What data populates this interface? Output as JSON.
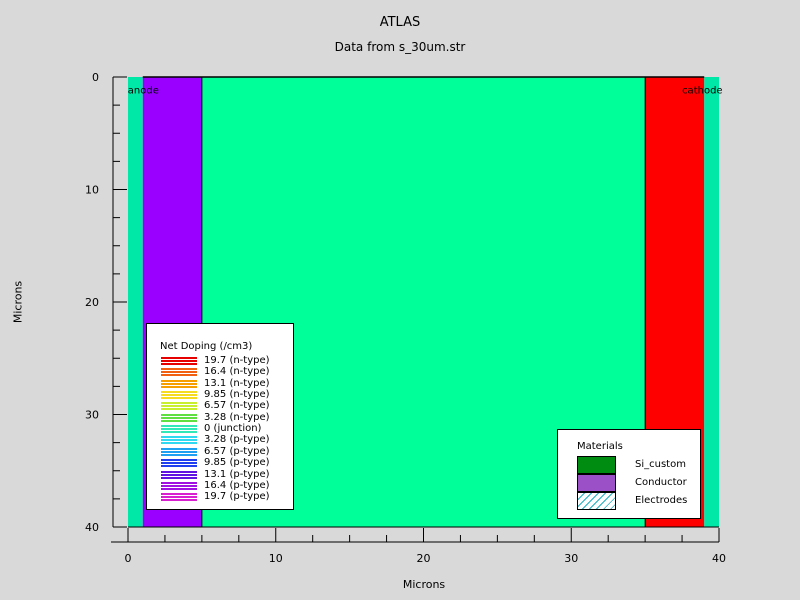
{
  "header": {
    "title": "ATLAS",
    "subtitle": "Data from s_30um.str"
  },
  "chart_data": {
    "type": "heatmap",
    "title": "ATLAS",
    "subtitle": "Data from s_30um.str",
    "xlabel": "Microns",
    "ylabel": "Microns",
    "xlim": [
      0,
      40
    ],
    "ylim": [
      0,
      40
    ],
    "y_inverted": true,
    "x_ticks": [
      "0",
      "10",
      "20",
      "30",
      "40"
    ],
    "y_ticks": [
      "0",
      "10",
      "20",
      "30",
      "40"
    ],
    "regions": [
      {
        "name": "left-electrode-strip",
        "x": [
          0,
          1
        ],
        "y": [
          0,
          40
        ],
        "color": "#00e8a8"
      },
      {
        "name": "anode-region",
        "x": [
          1,
          5
        ],
        "y": [
          0,
          40
        ],
        "color": "#9900ff"
      },
      {
        "name": "junction-region",
        "x": [
          5,
          35
        ],
        "y": [
          0,
          40
        ],
        "color": "#00ff99"
      },
      {
        "name": "cathode-region",
        "x": [
          35,
          39
        ],
        "y": [
          0,
          40
        ],
        "color": "#ff0000"
      },
      {
        "name": "right-electrode-strip",
        "x": [
          39,
          40
        ],
        "y": [
          0,
          40
        ],
        "color": "#00e8a8"
      }
    ],
    "electrode_labels": [
      {
        "text": "anode",
        "x": 1,
        "y": 1
      },
      {
        "text": "cathode",
        "x": 37.5,
        "y": 1
      }
    ],
    "doping_legend": {
      "title": "Net Doping (/cm3)",
      "placement": "bottom-left",
      "entries": [
        {
          "label": "19.7 (n-type)",
          "color": "#e60000"
        },
        {
          "label": "16.4 (n-type)",
          "color": "#f06010"
        },
        {
          "label": "13.1 (n-type)",
          "color": "#f5a000"
        },
        {
          "label": "9.85 (n-type)",
          "color": "#f5dc20"
        },
        {
          "label": "6.57 (n-type)",
          "color": "#c8f030"
        },
        {
          "label": "3.28 (n-type)",
          "color": "#60e040"
        },
        {
          "label": "0 (junction)",
          "color": "#30e8b8"
        },
        {
          "label": "3.28 (p-type)",
          "color": "#30d8f0"
        },
        {
          "label": "6.57 (p-type)",
          "color": "#20a0f0"
        },
        {
          "label": "9.85 (p-type)",
          "color": "#2040f0"
        },
        {
          "label": "13.1 (p-type)",
          "color": "#6010e0"
        },
        {
          "label": "16.4 (p-type)",
          "color": "#a010e0"
        },
        {
          "label": "19.7 (p-type)",
          "color": "#d820d0"
        }
      ]
    },
    "materials_legend": {
      "title": "Materials",
      "placement": "bottom-right",
      "entries": [
        {
          "label": "Si_custom",
          "color": "#008c10",
          "pattern": "solid"
        },
        {
          "label": "Conductor",
          "color": "#9c50c8",
          "pattern": "solid"
        },
        {
          "label": "Electrodes",
          "color": "#20b0c0",
          "pattern": "hatch"
        }
      ]
    }
  }
}
